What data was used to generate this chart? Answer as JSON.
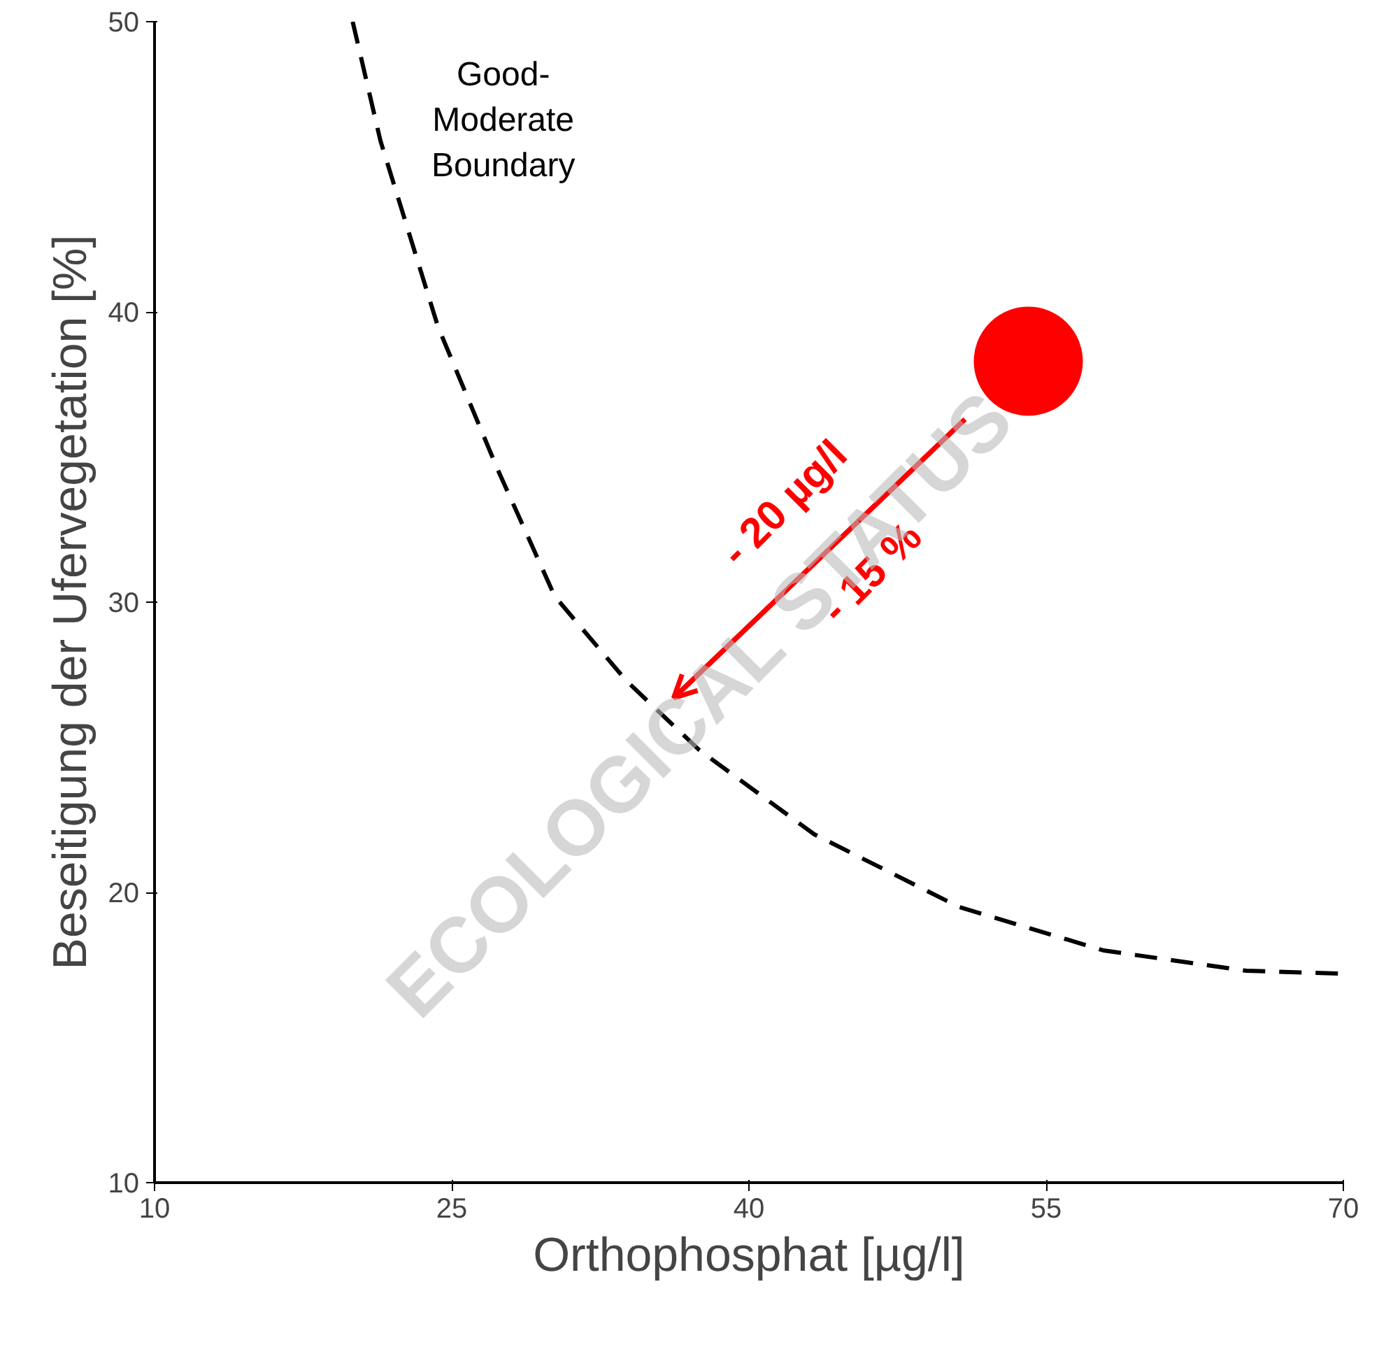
{
  "chart_data": {
    "type": "line",
    "xlabel": "Orthophosphat [µg/l]",
    "ylabel": "Beseitigung der Ufervegetation [%]",
    "xlim": [
      10,
      70
    ],
    "xticks": [
      10,
      25,
      40,
      55,
      70
    ],
    "ylim": [
      10,
      50
    ],
    "yticks": [
      10,
      20,
      30,
      40,
      50
    ],
    "grid": false,
    "series": [
      {
        "color": "#000000",
        "line_style": "dashed",
        "x": [
          20.0,
          21.4,
          24.3,
          27.3,
          30.2,
          33.8,
          37.5,
          43.3,
          50.6,
          57.9,
          65.1,
          70.0
        ],
        "values": [
          50.0,
          45.9,
          39.5,
          34.6,
          30.2,
          27.3,
          24.9,
          22.0,
          19.5,
          18.0,
          17.3,
          17.2
        ]
      },
      {
        "color": "#ff0000",
        "line_style": "solid",
        "x": [
          50.9,
          36.2
        ],
        "values": [
          36.3,
          26.7
        ]
      },
      {
        "type": "scatter",
        "color": "#ff0000",
        "marker": "circle",
        "x": [
          54.1
        ],
        "values": [
          38.3
        ]
      }
    ],
    "annotations": [
      "Good-\nModerate\nBoundary",
      "- 20 µg/l",
      "- 15 %",
      "ECOLOGICAL STATUS"
    ]
  }
}
